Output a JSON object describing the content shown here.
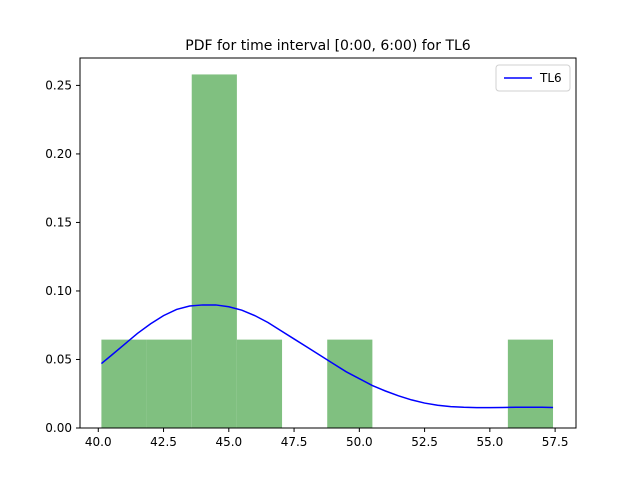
{
  "chart_data": {
    "type": "bar",
    "title": "PDF for time interval [0:00, 6:00) for TL6",
    "xlabel": "",
    "ylabel": "",
    "xlim": [
      39.3,
      58.3
    ],
    "ylim": [
      0,
      0.27
    ],
    "xticks": [
      40.0,
      42.5,
      45.0,
      47.5,
      50.0,
      52.5,
      55.0,
      57.5
    ],
    "xtick_labels": [
      "40.0",
      "42.5",
      "45.0",
      "47.5",
      "50.0",
      "52.5",
      "55.0",
      "57.5"
    ],
    "yticks": [
      0.0,
      0.05,
      0.1,
      0.15,
      0.2,
      0.25
    ],
    "ytick_labels": [
      "0.00",
      "0.05",
      "0.10",
      "0.15",
      "0.20",
      "0.25"
    ],
    "histogram": {
      "color": "#80c080",
      "bins": [
        {
          "x0": 40.12,
          "x1": 41.85,
          "density": 0.0645
        },
        {
          "x0": 41.85,
          "x1": 43.58,
          "density": 0.0645
        },
        {
          "x0": 43.58,
          "x1": 45.31,
          "density": 0.258
        },
        {
          "x0": 45.31,
          "x1": 47.04,
          "density": 0.0645
        },
        {
          "x0": 47.04,
          "x1": 48.77,
          "density": 0.0
        },
        {
          "x0": 48.77,
          "x1": 50.5,
          "density": 0.0645
        },
        {
          "x0": 50.5,
          "x1": 52.23,
          "density": 0.0
        },
        {
          "x0": 52.23,
          "x1": 53.96,
          "density": 0.0
        },
        {
          "x0": 53.96,
          "x1": 55.69,
          "density": 0.0
        },
        {
          "x0": 55.69,
          "x1": 57.42,
          "density": 0.0645
        }
      ]
    },
    "series": [
      {
        "name": "TL6",
        "type": "line",
        "color": "#0000ff",
        "x": [
          40.12,
          40.5,
          41.0,
          41.5,
          42.0,
          42.5,
          43.0,
          43.5,
          44.0,
          44.5,
          45.0,
          45.5,
          46.0,
          46.5,
          47.0,
          47.5,
          48.0,
          48.5,
          49.0,
          49.5,
          50.0,
          50.5,
          51.0,
          51.5,
          52.0,
          52.5,
          53.0,
          53.5,
          54.0,
          54.5,
          55.0,
          55.5,
          56.0,
          56.5,
          57.0,
          57.42
        ],
        "y": [
          0.047,
          0.053,
          0.061,
          0.069,
          0.076,
          0.082,
          0.0865,
          0.089,
          0.0898,
          0.0898,
          0.0885,
          0.086,
          0.082,
          0.077,
          0.071,
          0.065,
          0.059,
          0.053,
          0.047,
          0.041,
          0.036,
          0.031,
          0.027,
          0.0235,
          0.0205,
          0.0182,
          0.0166,
          0.0156,
          0.0151,
          0.0149,
          0.0149,
          0.015,
          0.0151,
          0.0151,
          0.0151,
          0.015
        ]
      }
    ],
    "legend": {
      "position": "top-right",
      "entries": [
        "TL6"
      ]
    },
    "grid": false
  }
}
